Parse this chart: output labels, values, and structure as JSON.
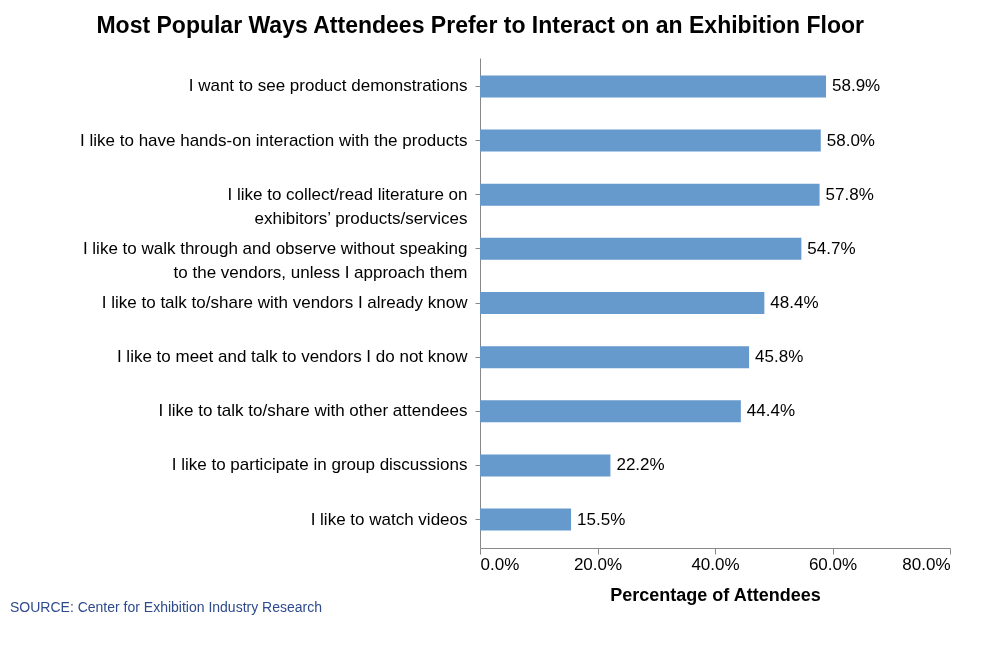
{
  "chart_data": {
    "type": "bar",
    "orientation": "horizontal",
    "title": "Most Popular Ways Attendees Prefer to Interact on an Exhibition Floor",
    "xlabel": "Percentage of Attendees",
    "categories": [
      "I want to see product demonstrations",
      "I like to have hands-on interaction with the products",
      "I like to collect/read literature on exhibitors’ products/services",
      "I like to walk through and observe without speaking to the vendors, unless I approach them",
      "I like to talk to/share with vendors I already know",
      "I like to meet and talk to vendors I do not know",
      "I like to talk to/share with other attendees",
      "I like to participate in group discussions",
      "I like to watch videos"
    ],
    "values": [
      58.9,
      58.0,
      57.8,
      54.7,
      48.4,
      45.8,
      44.4,
      22.2,
      15.5
    ],
    "value_labels": [
      "58.9%",
      "58.0%",
      "57.8%",
      "54.7%",
      "48.4%",
      "45.8%",
      "44.4%",
      "22.2%",
      "15.5%"
    ],
    "color": "#6699cc",
    "xlim": [
      0,
      80
    ],
    "xticks": [
      {
        "value": 0,
        "label": "0.0%"
      },
      {
        "value": 20,
        "label": "20.0%"
      },
      {
        "value": 40,
        "label": "40.0%"
      },
      {
        "value": 60,
        "label": "60.0%"
      },
      {
        "value": 80,
        "label": "80.0%"
      }
    ],
    "grid": false,
    "annotations": [
      "SOURCE: Center for Exhibition Industry Research"
    ]
  }
}
